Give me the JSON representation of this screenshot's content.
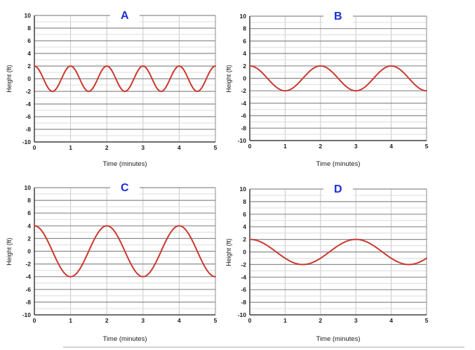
{
  "page": {
    "background": "#ffffff"
  },
  "colors": {
    "curve": "#cb382f",
    "grid_major": "#8c8c8c",
    "grid_minor": "#dcdcdc",
    "grid_vertical": "#c9c9c9",
    "axis": "#3f3f3f",
    "plot_border": "#8c8c8c",
    "tick_text": "#1b1b1b",
    "label_text": "#1b1b1b",
    "title_text": "#1c2dd6"
  },
  "chart_data": [
    {
      "title": "A",
      "type": "line",
      "xlabel": "Time (minutes)",
      "ylabel": "Height (ft)",
      "xlim": [
        0,
        5
      ],
      "ylim": [
        -10,
        10
      ],
      "x_ticks": [
        0,
        1,
        2,
        3,
        4,
        5
      ],
      "y_ticks": [
        -10,
        -8,
        -6,
        -4,
        -2,
        0,
        2,
        4,
        6,
        8,
        10
      ],
      "y_minor_step": 1,
      "grid": true,
      "legend": "none",
      "series": [
        {
          "name": "height-wave-A",
          "color": "#cb382f",
          "function": "y(t) = 2cos(2πt)",
          "amplitude_ft": 2,
          "period_minutes": 1,
          "midline_ft": 0,
          "phase": "cosine-start-at-max",
          "key_points": [
            [
              0,
              2
            ],
            [
              0.5,
              -2
            ],
            [
              1,
              2
            ],
            [
              1.5,
              -2
            ],
            [
              2,
              2
            ],
            [
              2.5,
              -2
            ],
            [
              3,
              2
            ],
            [
              3.5,
              -2
            ],
            [
              4,
              2
            ],
            [
              4.5,
              -2
            ],
            [
              5,
              2
            ]
          ]
        }
      ]
    },
    {
      "title": "B",
      "type": "line",
      "xlabel": "Time (minutes)",
      "ylabel": "Height (ft)",
      "xlim": [
        0,
        5
      ],
      "ylim": [
        -10,
        10
      ],
      "x_ticks": [
        0,
        1,
        2,
        3,
        4,
        5
      ],
      "y_ticks": [
        -10,
        -8,
        -6,
        -4,
        -2,
        0,
        2,
        4,
        6,
        8,
        10
      ],
      "y_minor_step": 1,
      "grid": true,
      "legend": "none",
      "series": [
        {
          "name": "height-wave-B",
          "color": "#cb382f",
          "function": "y(t) = 2cos(πt)",
          "amplitude_ft": 2,
          "period_minutes": 2,
          "midline_ft": 0,
          "phase": "cosine-start-at-max",
          "key_points": [
            [
              0,
              2
            ],
            [
              1,
              -2
            ],
            [
              2,
              2
            ],
            [
              3,
              -2
            ],
            [
              4,
              2
            ],
            [
              5,
              -2
            ]
          ]
        }
      ]
    },
    {
      "title": "C",
      "type": "line",
      "xlabel": "Time (minutes)",
      "ylabel": "Height (ft)",
      "xlim": [
        0,
        5
      ],
      "ylim": [
        -10,
        10
      ],
      "x_ticks": [
        0,
        1,
        2,
        3,
        4,
        5
      ],
      "y_ticks": [
        -10,
        -8,
        -6,
        -4,
        -2,
        0,
        2,
        4,
        6,
        8,
        10
      ],
      "y_minor_step": 1,
      "grid": true,
      "legend": "none",
      "series": [
        {
          "name": "height-wave-C",
          "color": "#cb382f",
          "function": "y(t) = 4cos(πt)",
          "amplitude_ft": 4,
          "period_minutes": 2,
          "midline_ft": 0,
          "phase": "cosine-start-at-max",
          "key_points": [
            [
              0,
              4
            ],
            [
              1,
              -4
            ],
            [
              2,
              4
            ],
            [
              3,
              -4
            ],
            [
              4,
              4
            ],
            [
              5,
              -4
            ]
          ]
        }
      ]
    },
    {
      "title": "D",
      "type": "line",
      "xlabel": "Time (minutes)",
      "ylabel": "Height (ft)",
      "xlim": [
        0,
        5
      ],
      "ylim": [
        -10,
        10
      ],
      "x_ticks": [
        0,
        1,
        2,
        3,
        4,
        5
      ],
      "y_ticks": [
        -10,
        -8,
        -6,
        -4,
        -2,
        0,
        2,
        4,
        6,
        8,
        10
      ],
      "y_minor_step": 1,
      "grid": true,
      "legend": "none",
      "series": [
        {
          "name": "height-wave-D",
          "color": "#cb382f",
          "function": "y(t) = 2cos(2πt/3)",
          "amplitude_ft": 2,
          "period_minutes": 3,
          "midline_ft": 0,
          "phase": "cosine-start-at-max",
          "key_points": [
            [
              0,
              2
            ],
            [
              1.5,
              -2
            ],
            [
              3,
              2
            ],
            [
              4.5,
              -2
            ],
            [
              5,
              -1
            ]
          ]
        }
      ]
    }
  ]
}
